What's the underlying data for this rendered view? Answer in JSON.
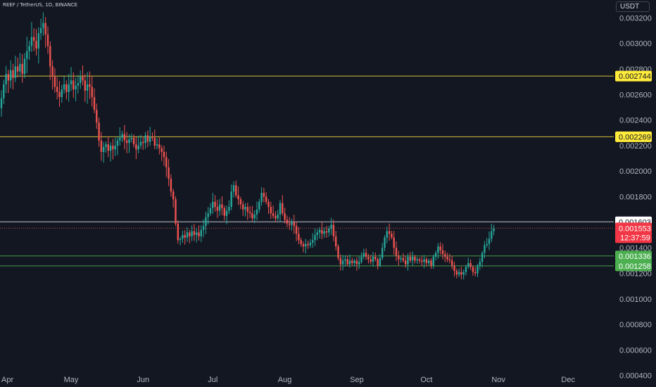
{
  "header": {
    "symbol": "REEF / TetherUS, 1D, BINANCE",
    "currency": "USDT"
  },
  "colors": {
    "background": "#131722",
    "up": "#26a69a",
    "down": "#ef5350",
    "yellow_line": "#f5e13c",
    "green_line": "#4caf50",
    "white_line": "#e0e3eb",
    "tag_yellow": "#ffeb3b",
    "tag_green": "#4caf50",
    "tag_red": "#f23645"
  },
  "chart_data": {
    "type": "candlestick",
    "y_ticks": [
      "0.000400",
      "0.000600",
      "0.000800",
      "0.001000",
      "0.001200",
      "0.001400",
      "0.001600",
      "0.001800",
      "0.002000",
      "0.002200",
      "0.002400",
      "0.002600",
      "0.002800",
      "0.003000",
      "0.003200"
    ],
    "x_ticks": [
      "Apr",
      "May",
      "Jun",
      "Jul",
      "Aug",
      "Sep",
      "Oct",
      "Nov",
      "Dec"
    ],
    "ylim": [
      0.00031,
      0.00334
    ],
    "horizontal_lines": [
      {
        "value": 0.002744,
        "label": "0.002744",
        "kind": "yellow"
      },
      {
        "value": 0.002269,
        "label": "0.002269",
        "kind": "yellow"
      },
      {
        "value": 0.001603,
        "label": "0.001603",
        "kind": "white"
      },
      {
        "value": 0.001336,
        "label": "0.001336",
        "kind": "green"
      },
      {
        "value": 0.001258,
        "label": "0.001258",
        "kind": "green"
      }
    ],
    "current_price": {
      "value": 0.001553,
      "label": "0.001553",
      "countdown": "12:37:59"
    },
    "start_date": "Apr 1",
    "closes": [
      0.00257,
      0.00268,
      0.00276,
      0.00271,
      0.00279,
      0.00273,
      0.00282,
      0.00278,
      0.00284,
      0.00276,
      0.00288,
      0.00294,
      0.00298,
      0.00305,
      0.00302,
      0.00296,
      0.00308,
      0.00312,
      0.00316,
      0.00307,
      0.00298,
      0.00282,
      0.00274,
      0.00266,
      0.00262,
      0.00258,
      0.00264,
      0.00268,
      0.00262,
      0.00268,
      0.00271,
      0.00264,
      0.00267,
      0.00269,
      0.00274,
      0.00271,
      0.00263,
      0.00268,
      0.00266,
      0.00258,
      0.00248,
      0.00238,
      0.00224,
      0.00215,
      0.00219,
      0.00221,
      0.00216,
      0.0022,
      0.00217,
      0.0022,
      0.00224,
      0.00226,
      0.00229,
      0.00224,
      0.00222,
      0.00225,
      0.00226,
      0.00221,
      0.00217,
      0.0022,
      0.00223,
      0.00222,
      0.00228,
      0.00223,
      0.00227,
      0.00226,
      0.0022,
      0.00221,
      0.00218,
      0.00215,
      0.00211,
      0.00203,
      0.00194,
      0.00184,
      0.00178,
      0.00159,
      0.00146,
      0.00147,
      0.0015,
      0.00148,
      0.00152,
      0.00149,
      0.00153,
      0.0015,
      0.00152,
      0.00149,
      0.00154,
      0.00157,
      0.00164,
      0.00167,
      0.00171,
      0.00176,
      0.00172,
      0.00169,
      0.00174,
      0.00171,
      0.00165,
      0.00169,
      0.00172,
      0.00184,
      0.00189,
      0.00181,
      0.00178,
      0.00174,
      0.0017,
      0.00172,
      0.00168,
      0.00167,
      0.00163,
      0.00166,
      0.0017,
      0.00176,
      0.00183,
      0.0018,
      0.00176,
      0.00172,
      0.00167,
      0.00165,
      0.00163,
      0.00166,
      0.00175,
      0.00167,
      0.00162,
      0.00159,
      0.00158,
      0.0016,
      0.00157,
      0.00151,
      0.00146,
      0.00143,
      0.00141,
      0.00143,
      0.00142,
      0.00144,
      0.00146,
      0.0015,
      0.00152,
      0.00154,
      0.00151,
      0.00153,
      0.00152,
      0.00155,
      0.00158,
      0.00149,
      0.00141,
      0.00132,
      0.00127,
      0.0013,
      0.00131,
      0.00127,
      0.0013,
      0.00128,
      0.0013,
      0.00127,
      0.00129,
      0.00133,
      0.00136,
      0.00133,
      0.00131,
      0.00129,
      0.00133,
      0.00131,
      0.00126,
      0.00132,
      0.0014,
      0.00148,
      0.00153,
      0.00151,
      0.00148,
      0.0014,
      0.00134,
      0.00131,
      0.00132,
      0.0013,
      0.00127,
      0.00133,
      0.0013,
      0.00133,
      0.0013,
      0.00131,
      0.0013,
      0.00129,
      0.00131,
      0.00128,
      0.0013,
      0.00126,
      0.00133,
      0.00136,
      0.00141,
      0.00138,
      0.00135,
      0.00133,
      0.00131,
      0.0013,
      0.00126,
      0.00122,
      0.00119,
      0.00121,
      0.00119,
      0.00121,
      0.00125,
      0.00128,
      0.00125,
      0.00121,
      0.0012,
      0.00126,
      0.00129,
      0.00136,
      0.00142,
      0.00143,
      0.00147,
      0.00153,
      0.00155
    ]
  }
}
